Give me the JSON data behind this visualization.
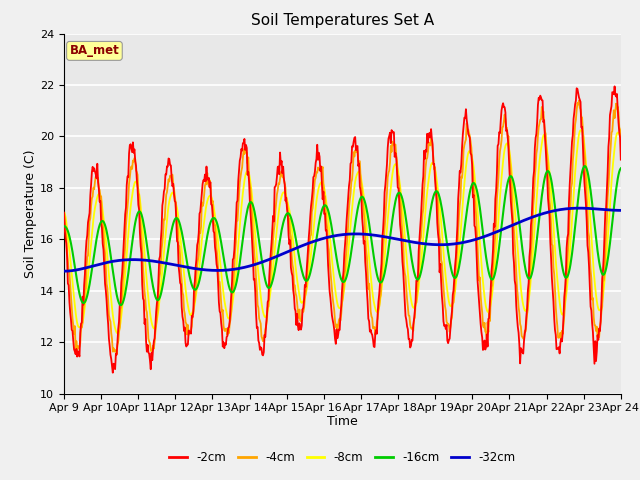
{
  "title": "Soil Temperatures Set A",
  "xlabel": "Time",
  "ylabel": "Soil Temperature (C)",
  "ylim": [
    10,
    24
  ],
  "annotation_text": "BA_met",
  "annotation_color": "#8B0000",
  "annotation_bg": "#FFFF99",
  "fig_facecolor": "#F0F0F0",
  "ax_facecolor": "#E8E8E8",
  "series_colors": {
    "-2cm": "#FF0000",
    "-4cm": "#FFA500",
    "-8cm": "#FFFF00",
    "-16cm": "#00CC00",
    "-32cm": "#0000CC"
  },
  "x_tick_labels": [
    "Apr 9",
    "Apr 10",
    "Apr 11",
    "Apr 12",
    "Apr 13",
    "Apr 14",
    "Apr 15",
    "Apr 16",
    "Apr 17",
    "Apr 18",
    "Apr 19",
    "Apr 20",
    "Apr 21",
    "Apr 22",
    "Apr 23",
    "Apr 24"
  ],
  "figsize": [
    6.4,
    4.8
  ],
  "dpi": 100
}
